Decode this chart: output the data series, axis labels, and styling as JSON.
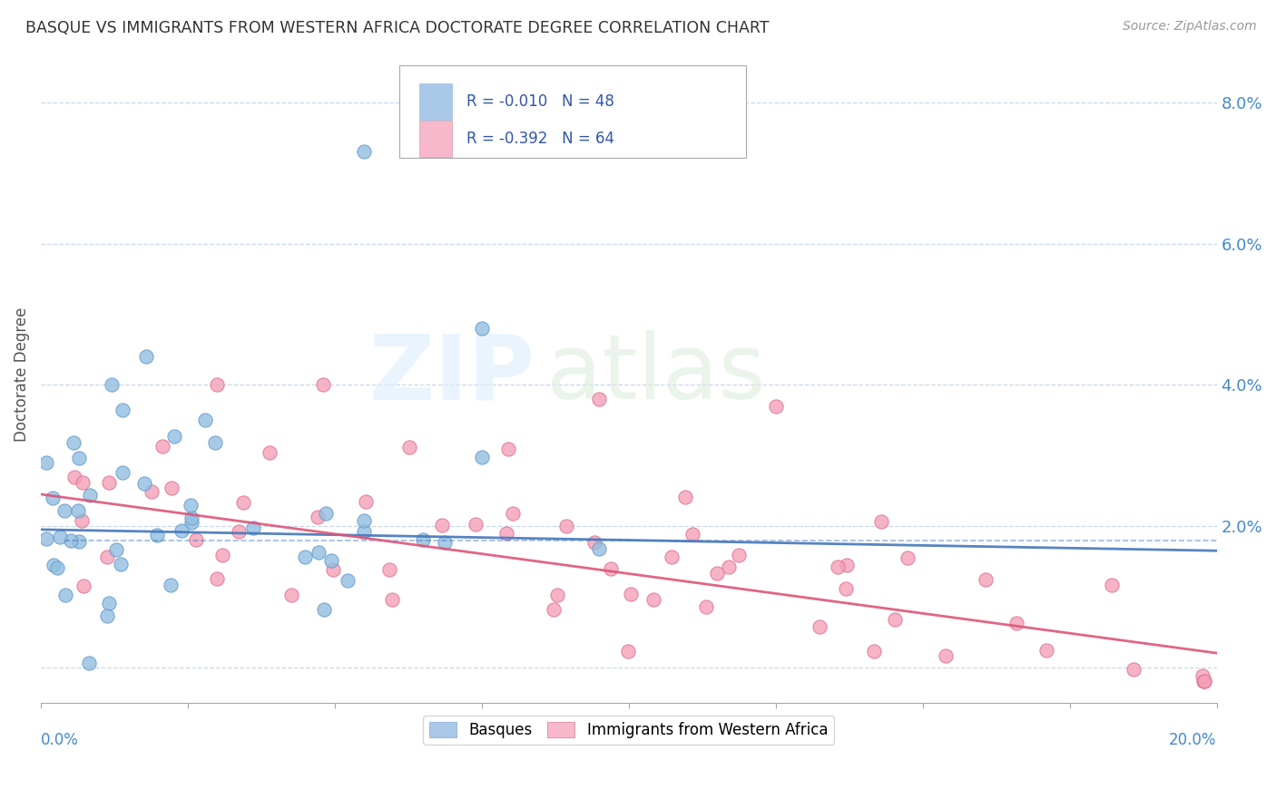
{
  "title": "BASQUE VS IMMIGRANTS FROM WESTERN AFRICA DOCTORATE DEGREE CORRELATION CHART",
  "source": "Source: ZipAtlas.com",
  "ylabel": "Doctorate Degree",
  "xlim": [
    0.0,
    0.2
  ],
  "ylim": [
    -0.005,
    0.088
  ],
  "yticks": [
    0.0,
    0.02,
    0.04,
    0.06,
    0.08
  ],
  "ytick_labels": [
    "",
    "2.0%",
    "4.0%",
    "6.0%",
    "8.0%"
  ],
  "series1_name": "Basques",
  "series2_name": "Immigrants from Western Africa",
  "series1_color": "#91bfe0",
  "series2_color": "#f4a0b8",
  "series1_edge_color": "#6699cc",
  "series2_edge_color": "#e07090",
  "series1_line_color": "#4477bb",
  "series2_line_color": "#dd5577",
  "trend1_x": [
    0.0,
    0.2
  ],
  "trend1_y": [
    0.0195,
    0.0165
  ],
  "trend2_x": [
    0.0,
    0.2
  ],
  "trend2_y": [
    0.0245,
    0.002
  ],
  "background_color": "#ffffff",
  "grid_color": "#c8d8e8",
  "legend_color_1": "#aac8e8",
  "legend_color_2": "#f8b8cc",
  "legend_text_color": "#3355aa"
}
